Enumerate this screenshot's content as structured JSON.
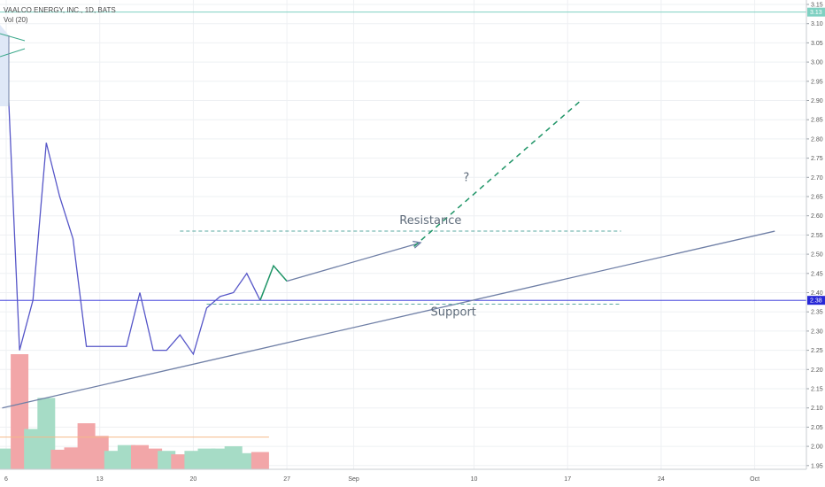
{
  "chart_data": {
    "type": "line",
    "title": "VAALCO ENERGY, INC., 1D, BATS",
    "indicator": "Vol (20)",
    "y_ticks": [
      "3.15",
      "3.10",
      "3.05",
      "3.00",
      "2.95",
      "2.90",
      "2.85",
      "2.80",
      "2.75",
      "2.70",
      "2.65",
      "2.60",
      "2.55",
      "2.50",
      "2.45",
      "2.40",
      "2.35",
      "2.30",
      "2.25",
      "2.20",
      "2.15",
      "2.10",
      "2.05",
      "2.00",
      "1.95"
    ],
    "ylim": [
      1.93,
      3.16
    ],
    "x_ticks": [
      {
        "label": "6",
        "day": 0
      },
      {
        "label": "13",
        "day": 7
      },
      {
        "label": "20",
        "day": 14
      },
      {
        "label": "27",
        "day": 21
      },
      {
        "label": "Sep",
        "day": 26
      },
      {
        "label": "10",
        "day": 35
      },
      {
        "label": "17",
        "day": 42
      },
      {
        "label": "24",
        "day": 49
      },
      {
        "label": "Oct",
        "day": 56
      }
    ],
    "price_series": {
      "name": "",
      "color": "#5656c8",
      "points": [
        [
          0,
          3.05
        ],
        [
          1,
          2.25
        ],
        [
          2,
          2.38
        ],
        [
          3,
          2.79
        ],
        [
          4,
          2.65
        ],
        [
          5,
          2.54
        ],
        [
          6,
          2.26
        ],
        [
          7,
          2.26
        ],
        [
          8,
          2.26
        ],
        [
          9,
          2.26
        ],
        [
          10,
          2.4
        ],
        [
          11,
          2.25
        ],
        [
          12,
          2.25
        ],
        [
          13,
          2.29
        ],
        [
          14,
          2.24
        ],
        [
          15,
          2.36
        ],
        [
          16,
          2.39
        ],
        [
          17,
          2.4
        ],
        [
          18,
          2.45
        ],
        [
          19,
          2.38
        ]
      ]
    },
    "forecast_segment": {
      "color": "#1e9466",
      "points": [
        [
          19,
          2.38
        ],
        [
          20,
          2.47
        ],
        [
          21,
          2.43
        ]
      ]
    },
    "projection_arrow": {
      "from": [
        21,
        2.43
      ],
      "to": [
        31,
        2.53
      ],
      "color": "#6f7fa6"
    },
    "breakout_projection": {
      "from": [
        30.5,
        2.52
      ],
      "to": [
        43,
        2.9
      ],
      "color": "#1e9466"
    },
    "resistance": {
      "label": "Resistance",
      "value": 2.56,
      "from_day": 13,
      "to_day": 46
    },
    "support": {
      "label": "Support",
      "value": 2.37,
      "from_day": 15,
      "to_day": 46
    },
    "question_mark": {
      "label": "?",
      "day": 34,
      "value": 2.7
    },
    "uptrend_line": {
      "from": [
        -0.3,
        2.1
      ],
      "to": [
        57.5,
        2.56
      ],
      "color": "#6f7fa6"
    },
    "current_price": {
      "label": "2.38",
      "value": 2.38,
      "color": "#2727d6"
    },
    "upper_level": {
      "label": "3.13",
      "value": 3.13,
      "color": "#7fd1c2"
    },
    "volume": {
      "days": [
        0,
        1,
        2,
        3,
        4,
        5,
        6,
        7,
        8,
        9,
        10,
        11,
        12,
        13,
        14,
        15,
        16,
        17,
        18,
        19
      ],
      "relative": [
        0.18,
        1.0,
        0.35,
        0.62,
        0.17,
        0.19,
        0.4,
        0.29,
        0.16,
        0.21,
        0.21,
        0.18,
        0.16,
        0.13,
        0.16,
        0.18,
        0.18,
        0.2,
        0.14,
        0.15
      ],
      "direction": [
        "up",
        "down",
        "up",
        "up",
        "down",
        "down",
        "down",
        "down",
        "up",
        "up",
        "down",
        "down",
        "up",
        "down",
        "up",
        "up",
        "up",
        "up",
        "up",
        "down"
      ],
      "up_color": "#a6dcc6",
      "down_color": "#f2a6a8",
      "ma_color": "#f4b98a",
      "ma_relative": 0.28
    }
  }
}
